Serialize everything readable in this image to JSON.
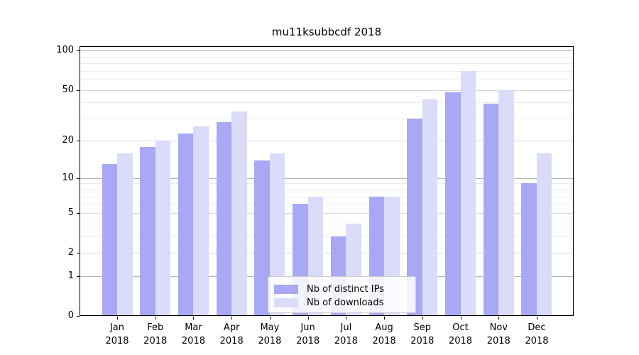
{
  "title": "mu11ksubbcdf 2018",
  "colors": {
    "ips_bar": "#a8a8f4",
    "downloads_bar": "#dbdbfa",
    "grid_major": "#d9d9d9",
    "grid_power": "#b3b3b3",
    "grid_minor": "#ececec",
    "axis": "#000000",
    "legend_border": "#cccccc"
  },
  "legend": {
    "items": [
      {
        "label": "Nb of distinct IPs",
        "series": "ips"
      },
      {
        "label": "Nb of downloads",
        "series": "downloads"
      }
    ]
  },
  "chart_data": {
    "type": "bar",
    "title": "mu11ksubbcdf 2018",
    "categories": [
      "Jan 2018",
      "Feb 2018",
      "Mar 2018",
      "Apr 2018",
      "May 2018",
      "Jun 2018",
      "Jul 2018",
      "Aug 2018",
      "Sep 2018",
      "Oct 2018",
      "Nov 2018",
      "Dec 2018"
    ],
    "series": [
      {
        "name": "Nb of distinct IPs",
        "color": "#a8a8f4",
        "values": [
          13,
          18,
          23,
          28,
          14,
          6,
          3,
          7,
          30,
          48,
          39,
          9
        ]
      },
      {
        "name": "Nb of downloads",
        "color": "#dbdbfa",
        "values": [
          16,
          20,
          26,
          34,
          16,
          7,
          4,
          7,
          42,
          70,
          50,
          16
        ]
      }
    ],
    "xlabel": "",
    "ylabel": "",
    "yscale": "log1p",
    "ylim": [
      0,
      108
    ],
    "y_ticks": [
      0,
      1,
      2,
      5,
      10,
      20,
      50,
      100
    ],
    "y_minor_gridlines": [
      3,
      4,
      6,
      7,
      8,
      9,
      30,
      40,
      60,
      70,
      80,
      90
    ],
    "y_power_gridlines": [
      1,
      10,
      100
    ],
    "grid": "on",
    "legend_position": "lower center"
  }
}
